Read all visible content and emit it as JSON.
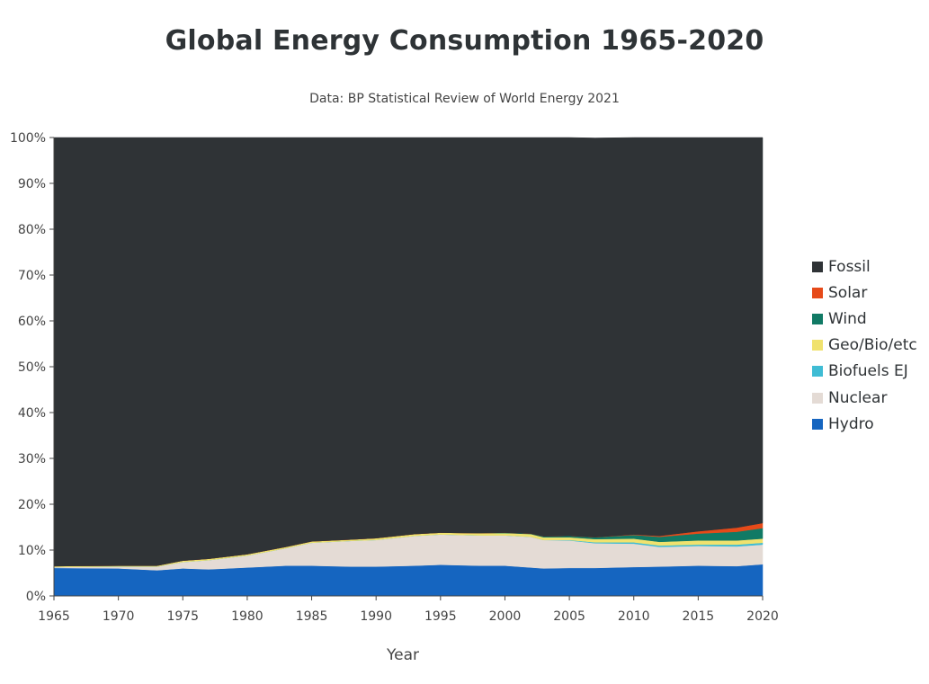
{
  "chart_data": {
    "type": "area",
    "stacked": true,
    "normalized_percent": true,
    "title": "Global Energy Consumption 1965-2020",
    "subtitle": "Data: BP Statistical Review of World Energy 2021",
    "xlabel": "Year",
    "ylabel": "",
    "xlim": [
      1965,
      2020
    ],
    "ylim": [
      0,
      100
    ],
    "x_ticks": [
      "1965",
      "1970",
      "1975",
      "1980",
      "1985",
      "1990",
      "1995",
      "2000",
      "2005",
      "2010",
      "2015",
      "2020"
    ],
    "y_ticks": [
      "0%",
      "10%",
      "20%",
      "30%",
      "40%",
      "50%",
      "60%",
      "70%",
      "80%",
      "90%",
      "100%"
    ],
    "legend_position": "right",
    "grid": false,
    "x": [
      1965,
      1970,
      1973,
      1975,
      1977,
      1980,
      1983,
      1985,
      1988,
      1990,
      1993,
      1995,
      1998,
      2000,
      2002,
      2003,
      2005,
      2007,
      2010,
      2012,
      2015,
      2018,
      2020
    ],
    "series": [
      {
        "name": "Hydro",
        "color": "#1565c0",
        "values": [
          6.1,
          6.0,
          5.6,
          6.0,
          5.8,
          6.2,
          6.6,
          6.6,
          6.4,
          6.4,
          6.6,
          6.8,
          6.6,
          6.6,
          6.2,
          6.0,
          6.1,
          6.1,
          6.3,
          6.4,
          6.6,
          6.5,
          6.9
        ]
      },
      {
        "name": "Nuclear",
        "color": "#e4dbd5",
        "values": [
          0.2,
          0.4,
          0.8,
          1.4,
          2.0,
          2.6,
          3.8,
          5.0,
          5.6,
          5.8,
          6.5,
          6.6,
          6.6,
          6.6,
          6.7,
          6.2,
          6.0,
          5.4,
          5.1,
          4.3,
          4.3,
          4.3,
          4.3
        ]
      },
      {
        "name": "Biofuels EJ",
        "color": "#3fbcd4",
        "values": [
          0,
          0,
          0,
          0,
          0,
          0,
          0,
          0,
          0,
          0,
          0,
          0,
          0,
          0,
          0,
          0,
          0.1,
          0.2,
          0.3,
          0.3,
          0.3,
          0.4,
          0.4
        ]
      },
      {
        "name": "Geo/Bio/etc",
        "color": "#f0e26e",
        "values": [
          0.2,
          0.2,
          0.2,
          0.3,
          0.3,
          0.3,
          0.3,
          0.3,
          0.3,
          0.4,
          0.4,
          0.4,
          0.5,
          0.5,
          0.6,
          0.6,
          0.6,
          0.7,
          0.8,
          0.8,
          0.9,
          0.9,
          0.9
        ]
      },
      {
        "name": "Wind",
        "color": "#117a65",
        "values": [
          0,
          0,
          0,
          0,
          0,
          0,
          0,
          0,
          0,
          0,
          0,
          0,
          0,
          0.1,
          0.1,
          0.2,
          0.3,
          0.4,
          0.8,
          1.1,
          1.5,
          1.9,
          2.3
        ]
      },
      {
        "name": "Solar",
        "color": "#e64a19",
        "values": [
          0,
          0,
          0,
          0,
          0,
          0,
          0,
          0,
          0,
          0,
          0,
          0,
          0,
          0,
          0,
          0,
          0,
          0,
          0.1,
          0.2,
          0.5,
          0.9,
          1.1
        ]
      },
      {
        "name": "Fossil",
        "color": "#2f3336",
        "values": [
          93.5,
          93.4,
          93.4,
          92.3,
          91.9,
          90.9,
          89.3,
          88.1,
          87.7,
          87.4,
          86.5,
          86.2,
          86.3,
          86.2,
          86.4,
          87.0,
          86.9,
          87.1,
          86.6,
          86.9,
          85.9,
          85.1,
          84.1
        ]
      }
    ],
    "legend_order": [
      "Fossil",
      "Solar",
      "Wind",
      "Geo/Bio/etc",
      "Biofuels EJ",
      "Nuclear",
      "Hydro"
    ]
  }
}
